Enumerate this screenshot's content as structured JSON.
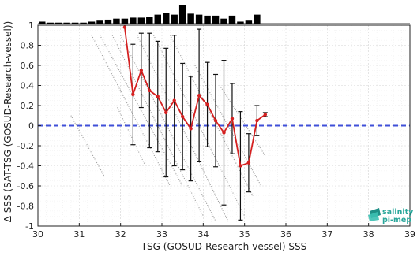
{
  "chart_data": {
    "type": "scatter",
    "xlabel": "TSG (GOSUD-Research-vessel) SSS",
    "ylabel": "Δ SSS (SAT-TSG (GOSUD-Research-vessel))",
    "xlim": [
      30,
      39
    ],
    "ylim": [
      -1,
      1
    ],
    "x_ticks": [
      30,
      31,
      32,
      33,
      34,
      35,
      36,
      37,
      38,
      39
    ],
    "y_ticks": [
      1,
      0.8,
      0.6,
      0.4,
      0.2,
      0,
      -0.2,
      -0.4,
      -0.6,
      -0.8,
      -1
    ],
    "grid": true,
    "reference_line": {
      "y": 0,
      "color": "#3f4fd8",
      "style": "dashed"
    },
    "mean_series": {
      "color": "#d42020",
      "points": [
        {
          "x": 32.1,
          "y": 0.98,
          "err": 0.0
        },
        {
          "x": 32.3,
          "y": 0.31,
          "err": 0.5
        },
        {
          "x": 32.5,
          "y": 0.55,
          "err": 0.37
        },
        {
          "x": 32.7,
          "y": 0.35,
          "err": 0.57
        },
        {
          "x": 32.9,
          "y": 0.29,
          "err": 0.55
        },
        {
          "x": 33.1,
          "y": 0.13,
          "err": 0.64
        },
        {
          "x": 33.3,
          "y": 0.25,
          "err": 0.65
        },
        {
          "x": 33.5,
          "y": 0.09,
          "err": 0.53
        },
        {
          "x": 33.7,
          "y": -0.03,
          "err": 0.52
        },
        {
          "x": 33.9,
          "y": 0.3,
          "err": 0.66
        },
        {
          "x": 34.1,
          "y": 0.21,
          "err": 0.42
        },
        {
          "x": 34.3,
          "y": 0.05,
          "err": 0.46
        },
        {
          "x": 34.5,
          "y": -0.07,
          "err": 0.72
        },
        {
          "x": 34.7,
          "y": 0.07,
          "err": 0.35
        },
        {
          "x": 34.9,
          "y": -0.4,
          "err": 0.54
        },
        {
          "x": 35.1,
          "y": -0.37,
          "err": 0.29
        },
        {
          "x": 35.3,
          "y": 0.05,
          "err": 0.15
        },
        {
          "x": 35.5,
          "y": 0.11,
          "err": 0.02
        }
      ]
    },
    "histogram": {
      "color": "#000000",
      "bins": [
        {
          "x": 30.1,
          "count": 2
        },
        {
          "x": 30.3,
          "count": 1
        },
        {
          "x": 30.5,
          "count": 1
        },
        {
          "x": 30.7,
          "count": 1
        },
        {
          "x": 30.9,
          "count": 1
        },
        {
          "x": 31.1,
          "count": 1
        },
        {
          "x": 31.3,
          "count": 2
        },
        {
          "x": 31.5,
          "count": 3
        },
        {
          "x": 31.7,
          "count": 4
        },
        {
          "x": 31.9,
          "count": 5
        },
        {
          "x": 32.1,
          "count": 5
        },
        {
          "x": 32.3,
          "count": 6
        },
        {
          "x": 32.5,
          "count": 6
        },
        {
          "x": 32.7,
          "count": 7
        },
        {
          "x": 32.9,
          "count": 9
        },
        {
          "x": 33.1,
          "count": 11
        },
        {
          "x": 33.3,
          "count": 9
        },
        {
          "x": 33.5,
          "count": 19
        },
        {
          "x": 33.7,
          "count": 10
        },
        {
          "x": 33.9,
          "count": 9
        },
        {
          "x": 34.1,
          "count": 8
        },
        {
          "x": 34.3,
          "count": 8
        },
        {
          "x": 34.5,
          "count": 5
        },
        {
          "x": 34.7,
          "count": 8
        },
        {
          "x": 34.9,
          "count": 2
        },
        {
          "x": 35.1,
          "count": 3
        },
        {
          "x": 35.3,
          "count": 9
        }
      ]
    },
    "scatter_streaks": [
      {
        "x1": 31.3,
        "y1": 0.9,
        "x2": 33.2,
        "y2": -0.6
      },
      {
        "x1": 31.5,
        "y1": 0.9,
        "x2": 33.5,
        "y2": -0.6
      },
      {
        "x1": 31.8,
        "y1": 0.9,
        "x2": 34.0,
        "y2": -0.9
      },
      {
        "x1": 32.0,
        "y1": 0.9,
        "x2": 34.3,
        "y2": -0.95
      },
      {
        "x1": 32.4,
        "y1": 0.9,
        "x2": 34.6,
        "y2": -0.95
      },
      {
        "x1": 32.8,
        "y1": 0.9,
        "x2": 35.0,
        "y2": -0.9
      },
      {
        "x1": 33.2,
        "y1": 0.9,
        "x2": 35.2,
        "y2": -0.7
      },
      {
        "x1": 33.8,
        "y1": 0.6,
        "x2": 35.4,
        "y2": -0.6
      },
      {
        "x1": 34.4,
        "y1": 0.4,
        "x2": 35.5,
        "y2": -0.3
      },
      {
        "x1": 30.8,
        "y1": 0.1,
        "x2": 31.6,
        "y2": -0.5
      },
      {
        "x1": 31.9,
        "y1": 0.2,
        "x2": 32.6,
        "y2": -0.4
      }
    ],
    "logo": {
      "line1": "salinity",
      "line2": "pi-mep"
    }
  }
}
